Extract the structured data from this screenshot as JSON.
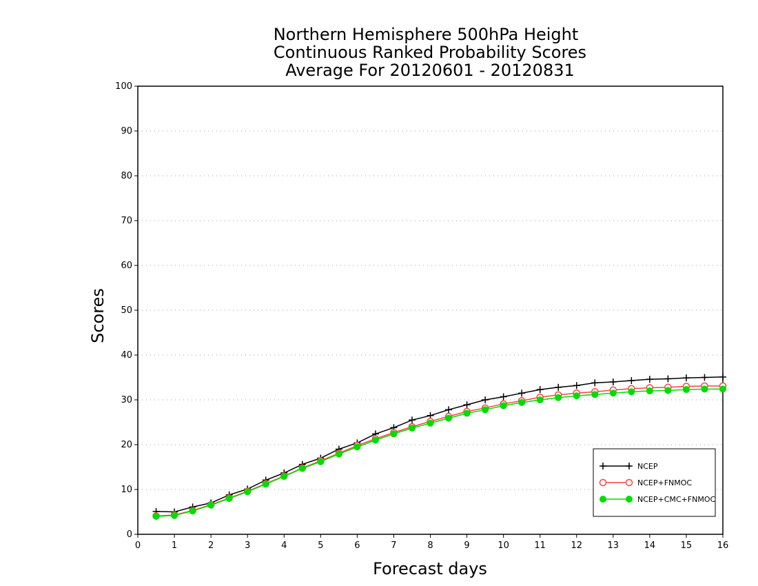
{
  "chart_data": {
    "type": "line",
    "title": [
      "Northern Hemisphere 500hPa Height",
      "Continuous Ranked Probability Scores",
      "Average For 20120601 - 20120831"
    ],
    "xlabel": "Forecast days",
    "ylabel": "Scores",
    "xlim": [
      0,
      16
    ],
    "ylim": [
      0,
      100
    ],
    "xticks": [
      "0",
      "1",
      "2",
      "3",
      "4",
      "5",
      "6",
      "7",
      "8",
      "9",
      "10",
      "11",
      "12",
      "13",
      "14",
      "15",
      "16"
    ],
    "yticks": [
      "0",
      "10",
      "20",
      "30",
      "40",
      "50",
      "60",
      "70",
      "80",
      "90",
      "100"
    ],
    "grid": true,
    "legend_position": "bottom-right",
    "x": [
      0.5,
      1,
      1.5,
      2,
      2.5,
      3,
      3.5,
      4,
      4.5,
      5,
      5.5,
      6,
      6.5,
      7,
      7.5,
      8,
      8.5,
      9,
      9.5,
      10,
      10.5,
      11,
      11.5,
      12,
      12.5,
      13,
      13.5,
      14,
      14.5,
      15,
      15.5,
      16
    ],
    "series": [
      {
        "name": "NCEP",
        "color": "#000000",
        "marker": "plus",
        "values": [
          5.1,
          5.0,
          6.1,
          7.0,
          8.8,
          10.1,
          12.1,
          13.7,
          15.6,
          17.0,
          19.0,
          20.4,
          22.4,
          23.8,
          25.5,
          26.5,
          27.8,
          28.9,
          30.0,
          30.7,
          31.5,
          32.3,
          32.8,
          33.2,
          33.8,
          34.0,
          34.3,
          34.6,
          34.7,
          34.9,
          35.0,
          35.1
        ]
      },
      {
        "name": "NCEP+FNMOC",
        "color": "#ff4040",
        "marker": "open-circle",
        "values": [
          4.1,
          4.3,
          5.3,
          6.6,
          8.1,
          9.6,
          11.3,
          13.0,
          14.8,
          16.4,
          18.1,
          19.8,
          21.3,
          22.7,
          24.0,
          25.2,
          26.3,
          27.4,
          28.2,
          29.1,
          29.8,
          30.6,
          31.1,
          31.5,
          31.8,
          32.2,
          32.5,
          32.7,
          32.8,
          33.0,
          33.1,
          33.1
        ]
      },
      {
        "name": "NCEP+CMC+FNMOC",
        "color": "#00dd00",
        "marker": "filled-circle",
        "values": [
          4.0,
          4.2,
          5.2,
          6.5,
          8.0,
          9.5,
          11.2,
          12.9,
          14.7,
          16.2,
          17.9,
          19.5,
          21.0,
          22.4,
          23.7,
          24.8,
          25.9,
          27.0,
          27.8,
          28.7,
          29.4,
          30.0,
          30.5,
          30.9,
          31.2,
          31.5,
          31.8,
          32.0,
          32.1,
          32.3,
          32.4,
          32.4
        ]
      }
    ]
  }
}
